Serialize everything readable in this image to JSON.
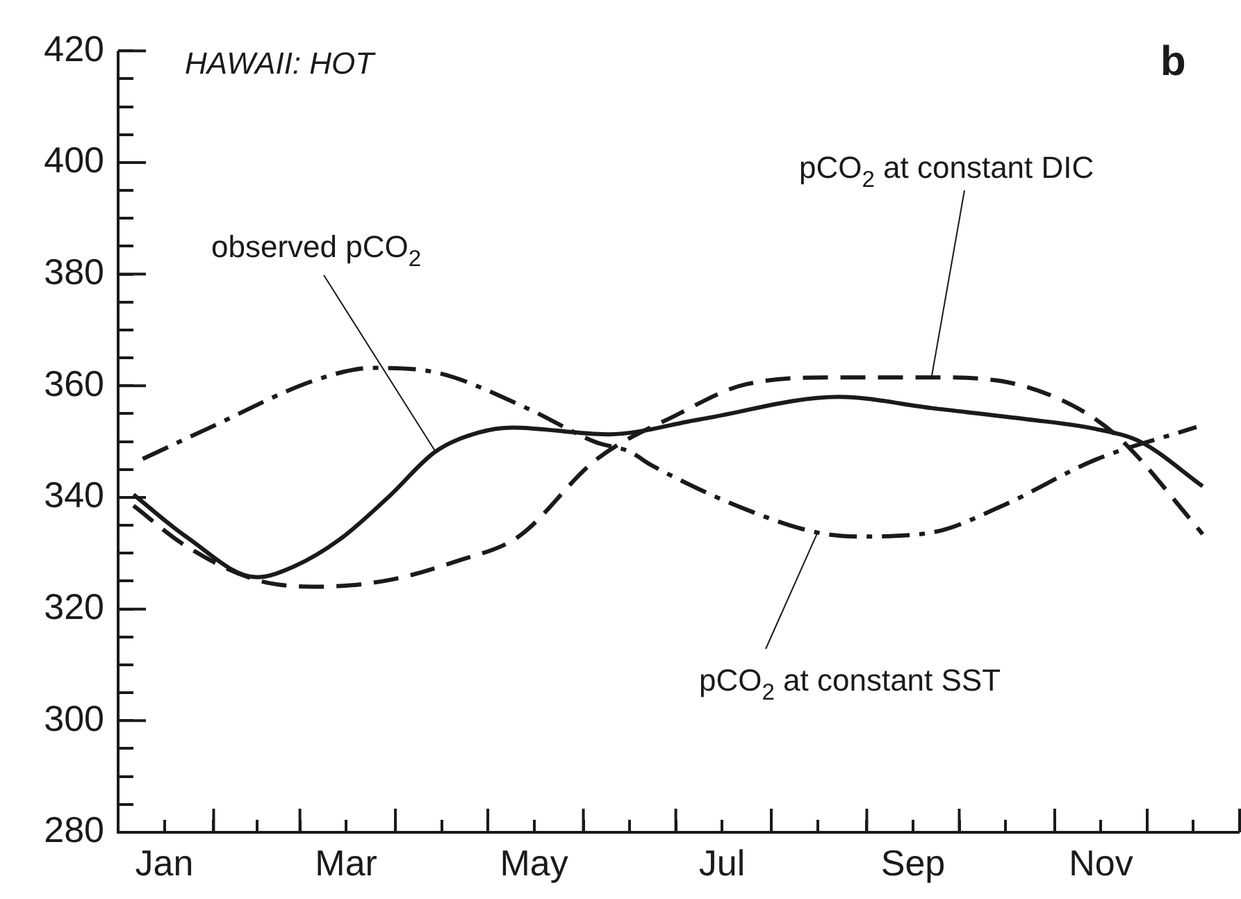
{
  "chart_data": {
    "type": "line",
    "xlim": [
      "--01-01",
      "--12-31"
    ],
    "xticks": [
      {
        "value": "--01-01",
        "label": null
      },
      {
        "value": "--01-16",
        "label": "Jan"
      },
      {
        "value": "--02-01",
        "label": null
      },
      {
        "value": "--02-15",
        "label": null
      },
      {
        "value": "--03-01",
        "label": null
      },
      {
        "value": "--03-16",
        "label": "Mar"
      },
      {
        "value": "--04-01",
        "label": null
      },
      {
        "value": "--04-16",
        "label": null
      },
      {
        "value": "--05-01",
        "label": null
      },
      {
        "value": "--05-16",
        "label": "May"
      },
      {
        "value": "--06-01",
        "label": null
      },
      {
        "value": "--06-16",
        "label": null
      },
      {
        "value": "--07-01",
        "label": null
      },
      {
        "value": "--07-16",
        "label": "Jul"
      },
      {
        "value": "--08-01",
        "label": null
      },
      {
        "value": "--08-16",
        "label": null
      },
      {
        "value": "--09-01",
        "label": null
      },
      {
        "value": "--09-16",
        "label": "Sep"
      },
      {
        "value": "--10-01",
        "label": null
      },
      {
        "value": "--10-16",
        "label": null
      },
      {
        "value": "--11-01",
        "label": null
      },
      {
        "value": "--11-16",
        "label": "Nov"
      },
      {
        "value": "--12-01",
        "label": null
      },
      {
        "value": "--12-16",
        "label": null
      }
    ],
    "ylim": [
      280,
      420
    ],
    "yticks": [
      280,
      {
        "value": 285,
        "label": null
      },
      {
        "value": 290,
        "label": null
      },
      {
        "value": 295,
        "label": null
      },
      300,
      {
        "value": 305,
        "label": null
      },
      {
        "value": 310,
        "label": null
      },
      {
        "value": 315,
        "label": null
      },
      320,
      {
        "value": 325,
        "label": null
      },
      {
        "value": 330,
        "label": null
      },
      {
        "value": 335,
        "label": null
      },
      340,
      {
        "value": 345,
        "label": null
      },
      {
        "value": 350,
        "label": null
      },
      {
        "value": 355,
        "label": null
      },
      360,
      {
        "value": 365,
        "label": null
      },
      {
        "value": 370,
        "label": null
      },
      {
        "value": 375,
        "label": null
      },
      380,
      {
        "value": 385,
        "label": null
      },
      {
        "value": 390,
        "label": null
      },
      {
        "value": 395,
        "label": null
      },
      400,
      {
        "value": 405,
        "label": null
      },
      {
        "value": 410,
        "label": null
      },
      {
        "value": 415,
        "label": null
      },
      420
    ],
    "grid": false,
    "legend": false,
    "marker": "none",
    "annotations": [
      "HAWAII: HOT",
      "b"
    ],
    "series": [
      {
        "name": "observed pCO$_{2}$",
        "color": "#1a1a1a",
        "line_style": "solid",
        "x": [
          "--01-06",
          "--01-23",
          "--02-15",
          "--02-27",
          "--03-14",
          "--03-30",
          "--04-14",
          "--04-28",
          "--05-09",
          "--06-09",
          "--07-09",
          "--08-23",
          "--09-22",
          "--10-23",
          "--11-14",
          "--11-29",
          "--12-19"
        ],
        "values": [
          340.5,
          333,
          325.7,
          327.6,
          332.5,
          340.2,
          348.2,
          351.6,
          352.5,
          351.3,
          354,
          358,
          356,
          354,
          352.3,
          349.9,
          342
        ]
      },
      {
        "name": "pCO$_{2}$ at constant DIC",
        "color": "#1a1a1a",
        "line_style": "dashed",
        "x": [
          "--01-06",
          "--01-23",
          "--02-15",
          "--03-07",
          "--03-30",
          "--04-21",
          "--05-11",
          "--06-05",
          "--07-01",
          "--07-24",
          "--08-23",
          "--09-22",
          "--10-15",
          "--11-07",
          "--11-22",
          "--12-15",
          "--12-19"
        ],
        "values": [
          338.5,
          331.3,
          325.2,
          324,
          325.2,
          328.6,
          333,
          346.7,
          354.7,
          360.3,
          361.5,
          361.5,
          360.8,
          356.4,
          350.6,
          336.1,
          333.4
        ]
      },
      {
        "name": "pCO$_{2}$ at constant SST",
        "color": "#1a1a1a",
        "line_style": "dashdot",
        "x": [
          "--01-09",
          "--01-30",
          "--03-07",
          "--03-25",
          "--04-14",
          "--05-14",
          "--06-05",
          "--06-16",
          "--06-23",
          "--07-24",
          "--08-16",
          "--08-30",
          "--09-22",
          "--10-15",
          "--11-14",
          "--12-17"
        ],
        "values": [
          346.9,
          352.3,
          361.2,
          363.2,
          362.4,
          355.9,
          349.9,
          348.2,
          345.8,
          337.8,
          333.7,
          333,
          333.7,
          338.5,
          346.7,
          352.6
        ]
      }
    ]
  }
}
